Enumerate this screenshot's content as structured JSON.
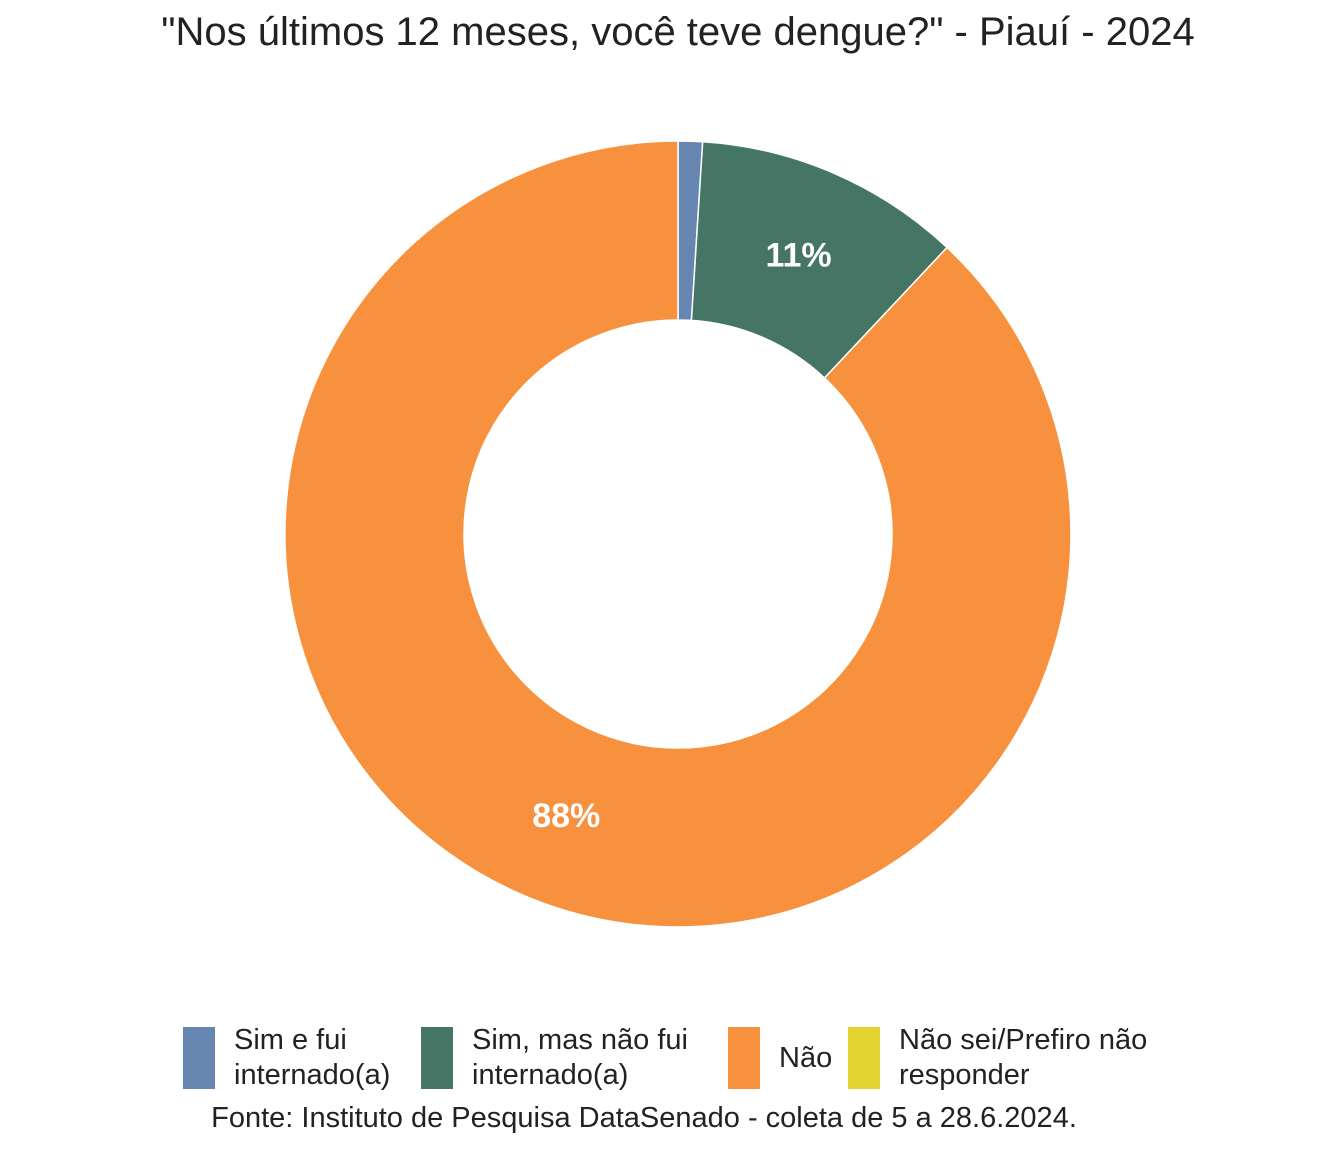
{
  "chart_data": {
    "type": "pie",
    "title": "\"Nos últimos 12 meses, você teve dengue?\" - Piauí - 2024",
    "categories": [
      "Sim e fui\ninternado(a)",
      "Sim, mas não fui\ninternado(a)",
      "Não",
      "Não sei/Prefiro não\nresponder"
    ],
    "values": [
      1,
      11,
      88,
      0
    ],
    "data_labels": [
      "",
      "11%",
      "88%",
      ""
    ],
    "colors": [
      "#6685b0",
      "#457565",
      "#f7913d",
      "#e3d430"
    ],
    "legend_position": "bottom",
    "caption": "Fonte: Instituto de Pesquisa DataSenado - coleta de 5 a 28.6.2024."
  }
}
